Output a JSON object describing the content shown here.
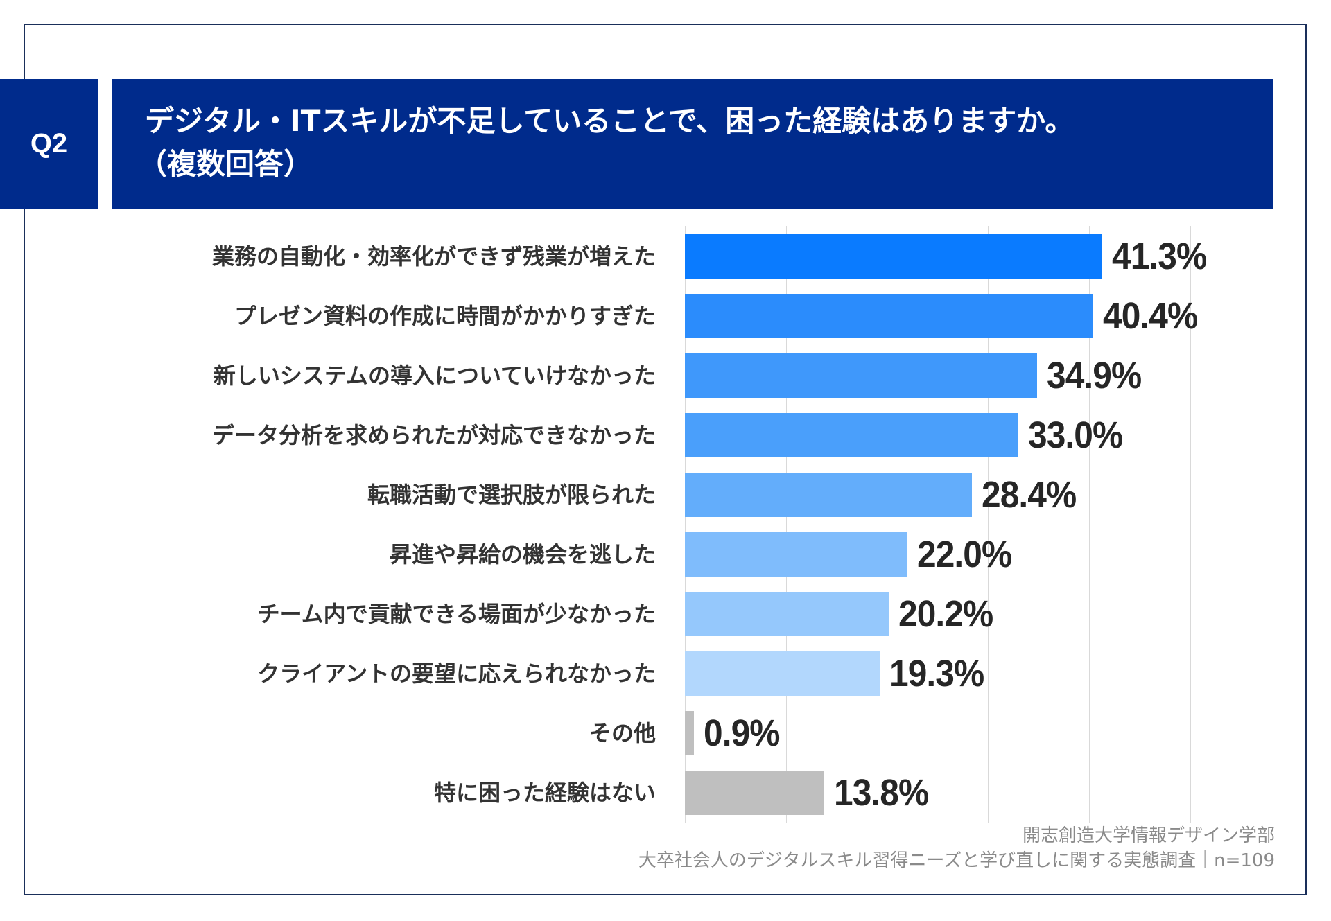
{
  "question": {
    "number": "Q2",
    "title_line1": "デジタル・ITスキルが不足していることで、困った経験はありますか。",
    "title_line2": "（複数回答）",
    "color": "#002b8c"
  },
  "chart_data": {
    "type": "bar",
    "orientation": "horizontal",
    "categories": [
      "業務の自動化・効率化ができず残業が増えた",
      "プレゼン資料の作成に時間がかかりすぎた",
      "新しいシステムの導入についていけなかった",
      "データ分析を求められたが対応できなかった",
      "転職活動で選択肢が限られた",
      "昇進や昇給の機会を逃した",
      "チーム内で貢献できる場面が少なかった",
      "クライアントの要望に応えられなかった",
      "その他",
      "特に困った経験はない"
    ],
    "values": [
      41.3,
      40.4,
      34.9,
      33.0,
      28.4,
      22.0,
      20.2,
      19.3,
      0.9,
      13.8
    ],
    "value_labels": [
      "41.3%",
      "40.4%",
      "34.9%",
      "33.0%",
      "28.4%",
      "22.0%",
      "20.2%",
      "19.3%",
      "0.9%",
      "13.8%"
    ],
    "colors": [
      "#0a7bff",
      "#2b8cfc",
      "#3f98fb",
      "#4a9ffb",
      "#63adfb",
      "#7fbcfc",
      "#95c8fc",
      "#b2d7fd",
      "#bfbfbf",
      "#bfbfbf"
    ],
    "xlim": [
      0,
      50
    ],
    "grid": true,
    "unit": "%"
  },
  "footer": {
    "source": "開志創造大学情報デザイン学部",
    "survey": "大卒社会人のデジタルスキル習得ニーズと学び直しに関する実態調査｜n=109"
  }
}
